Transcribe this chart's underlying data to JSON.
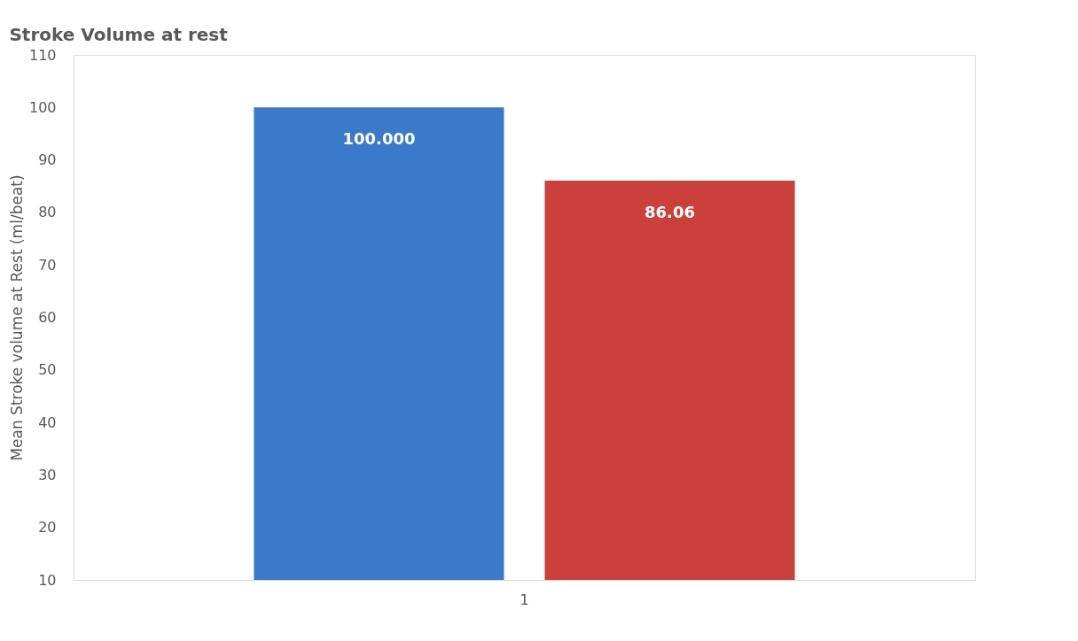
{
  "chart_data": {
    "type": "bar",
    "title": "Stroke Volume at rest",
    "ylabel": "Mean Stroke volume at Rest (ml/beat)",
    "categories": [
      "1"
    ],
    "series": [
      {
        "color": "#3b7acb",
        "values": [
          100.0
        ],
        "value_labels": [
          "100.000"
        ]
      },
      {
        "color": "#cc403b",
        "values": [
          86.06
        ],
        "value_labels": [
          "86.06"
        ]
      }
    ],
    "ylim": [
      10,
      110
    ],
    "yticks": [
      10,
      20,
      30,
      40,
      50,
      60,
      70,
      80,
      90,
      100,
      110
    ],
    "grid": false,
    "legend": false
  }
}
